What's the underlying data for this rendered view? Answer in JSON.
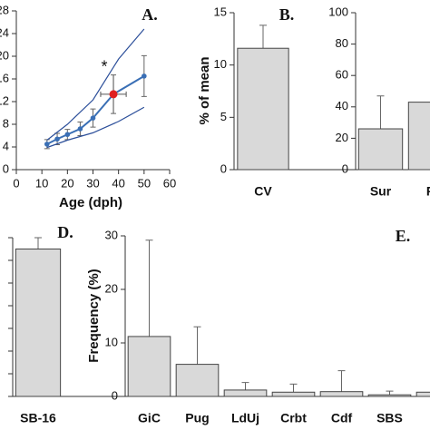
{
  "chart_data": [
    {
      "type": "line",
      "label": "A.",
      "xlabel": "Age (dph)",
      "annotation": "*",
      "xlim": [
        0,
        60
      ],
      "xticks": [
        0,
        10,
        20,
        30,
        40,
        50,
        60
      ],
      "ylim": [
        0,
        28
      ],
      "yticks": [
        0,
        4,
        8,
        12,
        16,
        20,
        24,
        28
      ],
      "series": [
        {
          "color": "#3a6fb5",
          "x": [
            12,
            16,
            20,
            25,
            30,
            38,
            50
          ],
          "values": [
            4.5,
            5.4,
            6.2,
            7.2,
            9.1,
            13.3,
            16.5
          ],
          "errors": [
            0.8,
            1,
            0.9,
            1.2,
            1.6,
            3.4,
            3.6
          ]
        },
        {
          "color": "#2c4f9a",
          "x": [
            12,
            20,
            30,
            40,
            50
          ],
          "values": [
            5.2,
            8,
            12.3,
            19.5,
            24.8
          ]
        },
        {
          "color": "#2c4f9a",
          "x": [
            12,
            20,
            30,
            40,
            50
          ],
          "values": [
            3.9,
            5.2,
            6.5,
            8.5,
            11
          ]
        }
      ],
      "highlight": {
        "color": "#e02020",
        "x": 38,
        "value": 13.3,
        "xerror": 5,
        "error": 3.4
      }
    },
    {
      "type": "bar",
      "label": "B.",
      "ylabel": "% of mean",
      "color": "#d9d9d9",
      "categories": [
        "CV"
      ],
      "values": [
        11.6
      ],
      "errors": [
        2.2
      ],
      "ylim": [
        0,
        15
      ],
      "yticks": [
        0,
        5,
        10,
        15
      ]
    },
    {
      "type": "bar",
      "color": "#d9d9d9",
      "categories": [
        "Sur",
        "P"
      ],
      "values": [
        26,
        43
      ],
      "errors": [
        21,
        null
      ],
      "ylim": [
        0,
        100
      ],
      "yticks": [
        0,
        20,
        40,
        60,
        80,
        100
      ]
    },
    {
      "type": "bar",
      "label": "D.",
      "color": "#d9d9d9",
      "categories": [
        "SB-16"
      ],
      "values": [
        6.5
      ],
      "errors": [
        0.5
      ],
      "ylim": [
        0,
        7
      ],
      "yticks": [
        0,
        1,
        2,
        3,
        4,
        5,
        6,
        7
      ],
      "hide_tick_labels": true
    },
    {
      "type": "bar",
      "label": "E.",
      "ylabel": "Frequency (%)",
      "color": "#d9d9d9",
      "categories": [
        "GiC",
        "Pug",
        "LdUj",
        "Crbt",
        "Cdf",
        "SBS",
        null
      ],
      "values": [
        11.2,
        6,
        1.2,
        0.8,
        0.9,
        0.3,
        0.8
      ],
      "errors": [
        18,
        7,
        1.4,
        1.5,
        3.9,
        0.7,
        null
      ],
      "ylim": [
        0,
        30
      ],
      "yticks": [
        0,
        10,
        20,
        30
      ]
    }
  ]
}
